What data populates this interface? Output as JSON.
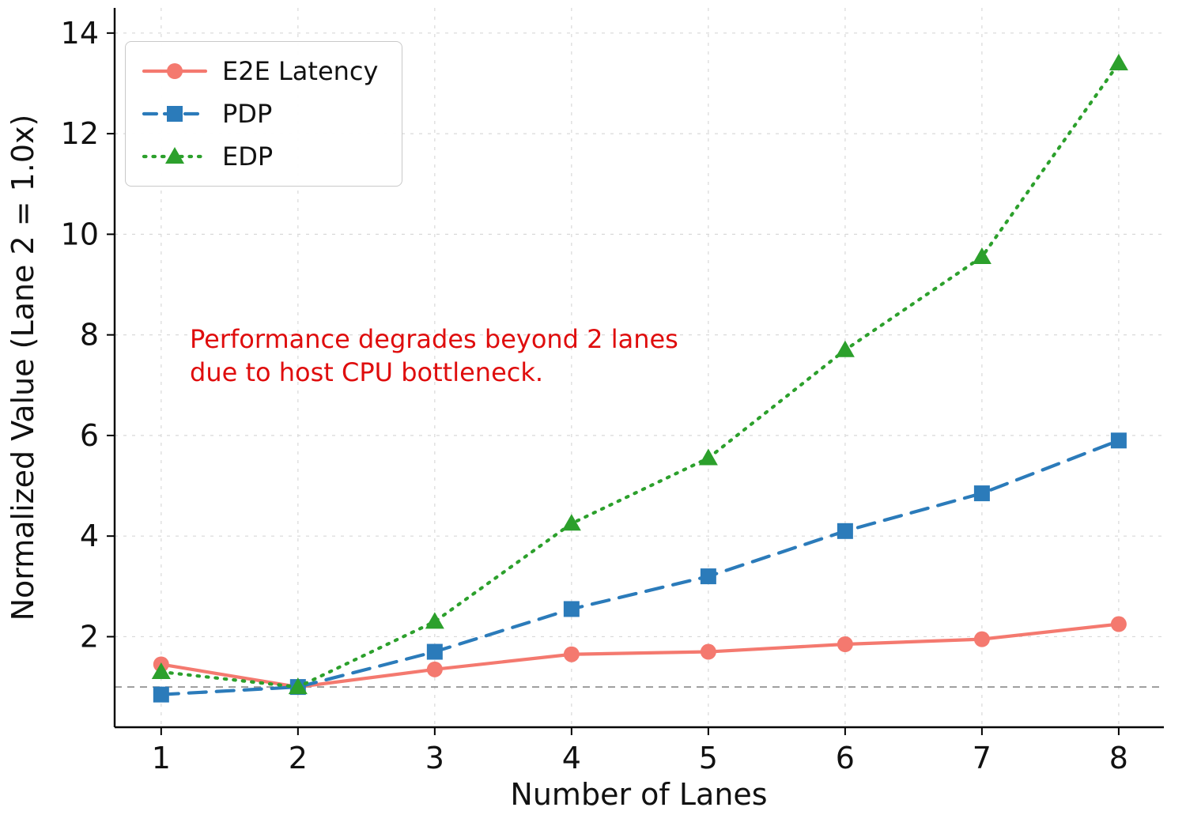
{
  "chart_data": {
    "type": "line",
    "title": "",
    "xlabel": "Number of Lanes",
    "ylabel": "Normalized Value (Lane 2 = 1.0x)",
    "x": [
      1,
      2,
      3,
      4,
      5,
      6,
      7,
      8
    ],
    "series": [
      {
        "name": "E2E Latency",
        "values": [
          1.45,
          1.0,
          1.35,
          1.65,
          1.7,
          1.85,
          1.95,
          2.25
        ],
        "color": "#f4796f",
        "line_style": "solid",
        "marker": "circle"
      },
      {
        "name": "PDP",
        "values": [
          0.85,
          1.0,
          1.7,
          2.55,
          3.2,
          4.1,
          4.85,
          5.9
        ],
        "color": "#2b7bba",
        "line_style": "dashed",
        "marker": "square"
      },
      {
        "name": "EDP",
        "values": [
          1.3,
          1.0,
          2.3,
          4.25,
          5.55,
          7.7,
          9.55,
          13.4
        ],
        "color": "#2ca02c",
        "line_style": "dotted",
        "marker": "triangle"
      }
    ],
    "xticks": [
      1,
      2,
      3,
      4,
      5,
      6,
      7,
      8
    ],
    "yticks": [
      2,
      4,
      6,
      8,
      10,
      12,
      14
    ],
    "xlim": [
      0.66,
      8.33
    ],
    "ylim": [
      0.2,
      14.5
    ],
    "grid": true,
    "legend_position": "upper left",
    "reference_line": {
      "y": 1.0,
      "color": "#8a8a8a",
      "style": "dashed"
    },
    "annotation": {
      "lines": [
        "Performance degrades beyond 2 lanes",
        "due to host CPU bottleneck."
      ],
      "color": "#df0d0d"
    }
  }
}
